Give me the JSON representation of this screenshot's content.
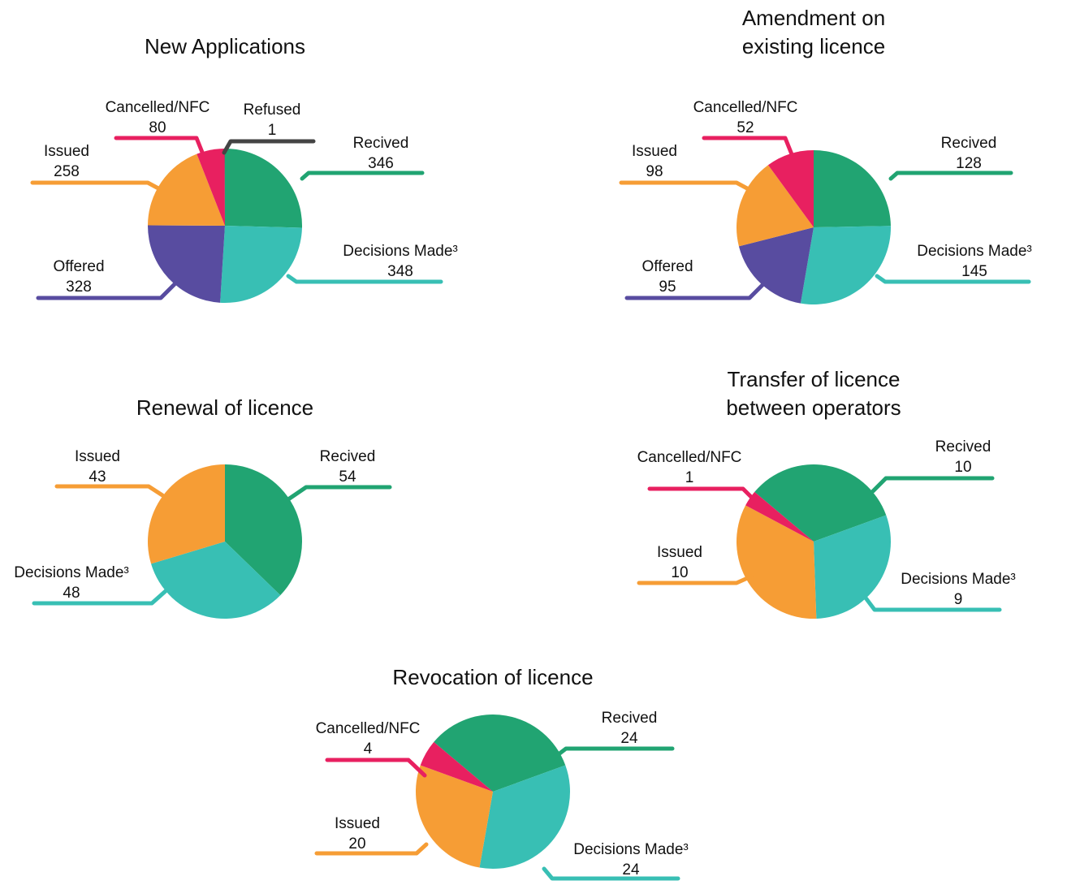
{
  "chart_data": [
    {
      "type": "pie",
      "title": "New Applications",
      "categories": [
        "Recived",
        "Decisions Made³",
        "Offered",
        "Issued",
        "Cancelled/NFC",
        "Refused"
      ],
      "values": [
        346,
        348,
        328,
        258,
        80,
        1
      ],
      "colors": [
        "#21a472",
        "#38bfb4",
        "#584ca0",
        "#f69d35",
        "#e82060",
        "#444444"
      ]
    },
    {
      "type": "pie",
      "title": "Amendment on existing licence",
      "categories": [
        "Recived",
        "Decisions Made³",
        "Offered",
        "Issued",
        "Cancelled/NFC"
      ],
      "values": [
        128,
        145,
        95,
        98,
        52
      ],
      "colors": [
        "#21a472",
        "#38bfb4",
        "#584ca0",
        "#f69d35",
        "#e82060"
      ]
    },
    {
      "type": "pie",
      "title": "Renewal of licence",
      "categories": [
        "Recived",
        "Decisions Made³",
        "Issued"
      ],
      "values": [
        54,
        48,
        43
      ],
      "colors": [
        "#21a472",
        "#38bfb4",
        "#f69d35"
      ]
    },
    {
      "type": "pie",
      "title": "Transfer of licence between operators",
      "categories": [
        "Recived",
        "Decisions Made³",
        "Issued",
        "Cancelled/NFC"
      ],
      "values": [
        10,
        9,
        10,
        1
      ],
      "colors": [
        "#21a472",
        "#38bfb4",
        "#f69d35",
        "#e82060"
      ]
    },
    {
      "type": "pie",
      "title": "Revocation of licence",
      "categories": [
        "Recived",
        "Decisions Made³",
        "Issued",
        "Cancelled/NFC"
      ],
      "values": [
        24,
        24,
        20,
        4
      ],
      "colors": [
        "#21a472",
        "#38bfb4",
        "#f69d35",
        "#e82060"
      ]
    }
  ]
}
